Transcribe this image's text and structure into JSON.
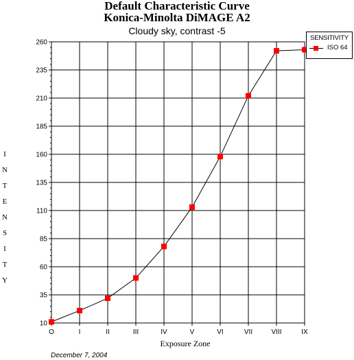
{
  "title_line1": "Default Characteristic Curve",
  "title_line2": "Konica-Minolta DiMAGE A2",
  "subtitle": "Cloudy sky, contrast -5",
  "footer_date": "December 7, 2004",
  "chart_data": {
    "type": "line",
    "title": "Default Characteristic Curve Konica-Minolta DiMAGE A2",
    "subtitle": "Cloudy sky, contrast -5",
    "xlabel": "Exposure Zone",
    "ylabel": "I N T E N S I T Y",
    "categories": [
      "O",
      "I",
      "II",
      "III",
      "IV",
      "V",
      "VI",
      "VII",
      "VIII",
      "IX"
    ],
    "ylim": [
      10,
      260
    ],
    "yticks": [
      10,
      35,
      60,
      85,
      110,
      135,
      160,
      185,
      210,
      235,
      260
    ],
    "legend_title": "SENSITIVITY",
    "legend_position": "top-right",
    "grid": true,
    "series": [
      {
        "name": "ISO 64",
        "color": "#ff0000",
        "marker": "square",
        "values": [
          11,
          21,
          32,
          50,
          78,
          113,
          158,
          212,
          252,
          253
        ]
      }
    ]
  }
}
